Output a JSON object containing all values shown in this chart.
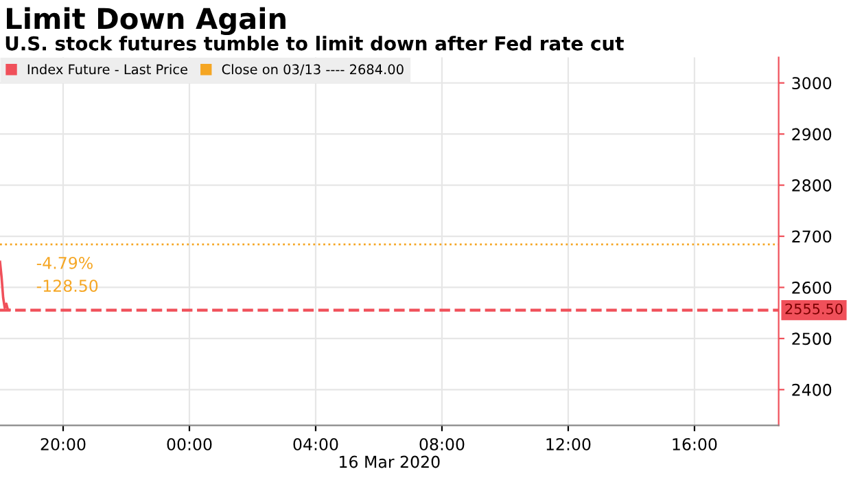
{
  "chart_data": {
    "type": "line",
    "title": "Limit Down Again",
    "subtitle": "U.S. stock futures tumble to limit down after Fed rate cut",
    "xlabel": "16 Mar 2020",
    "x": [
      "2020-03-15T18:00",
      "2020-03-15T18:03",
      "2020-03-15T18:06",
      "2020-03-15T18:09",
      "2020-03-15T18:12",
      "2020-03-15T18:15",
      "2020-03-15T18:18"
    ],
    "series": [
      {
        "name": "Index Future - Last Price",
        "color": "#f0505a",
        "values": [
          2650,
          2620,
          2580,
          2560,
          2568,
          2556,
          2556
        ]
      }
    ],
    "xlim": [
      "2020-03-15T18:00",
      "2020-03-16T18:40"
    ],
    "xticks": [
      {
        "value": "2020-03-15T20:00",
        "label": "20:00"
      },
      {
        "value": "2020-03-16T00:00",
        "label": "00:00"
      },
      {
        "value": "2020-03-16T04:00",
        "label": "04:00"
      },
      {
        "value": "2020-03-16T08:00",
        "label": "08:00"
      },
      {
        "value": "2020-03-16T12:00",
        "label": "12:00"
      },
      {
        "value": "2020-03-16T16:00",
        "label": "16:00"
      }
    ],
    "ylim": [
      2330,
      3050
    ],
    "yticks": [
      2400,
      2500,
      2600,
      2700,
      2800,
      2900,
      3000
    ],
    "ref_lines": [
      {
        "axis": "y",
        "value": 2684,
        "label": "Close on 03/13 ---- 2684.00",
        "color": "#f5a623",
        "line_style": "dotted"
      },
      {
        "axis": "y",
        "value": 2555.5,
        "label": "2555.50",
        "color": "#f0505a",
        "line_style": "dashed"
      }
    ],
    "annotations": [
      "-4.79%",
      "-128.50"
    ],
    "grid": true,
    "legend": "top left",
    "marker": "none",
    "line_style": "solid"
  }
}
